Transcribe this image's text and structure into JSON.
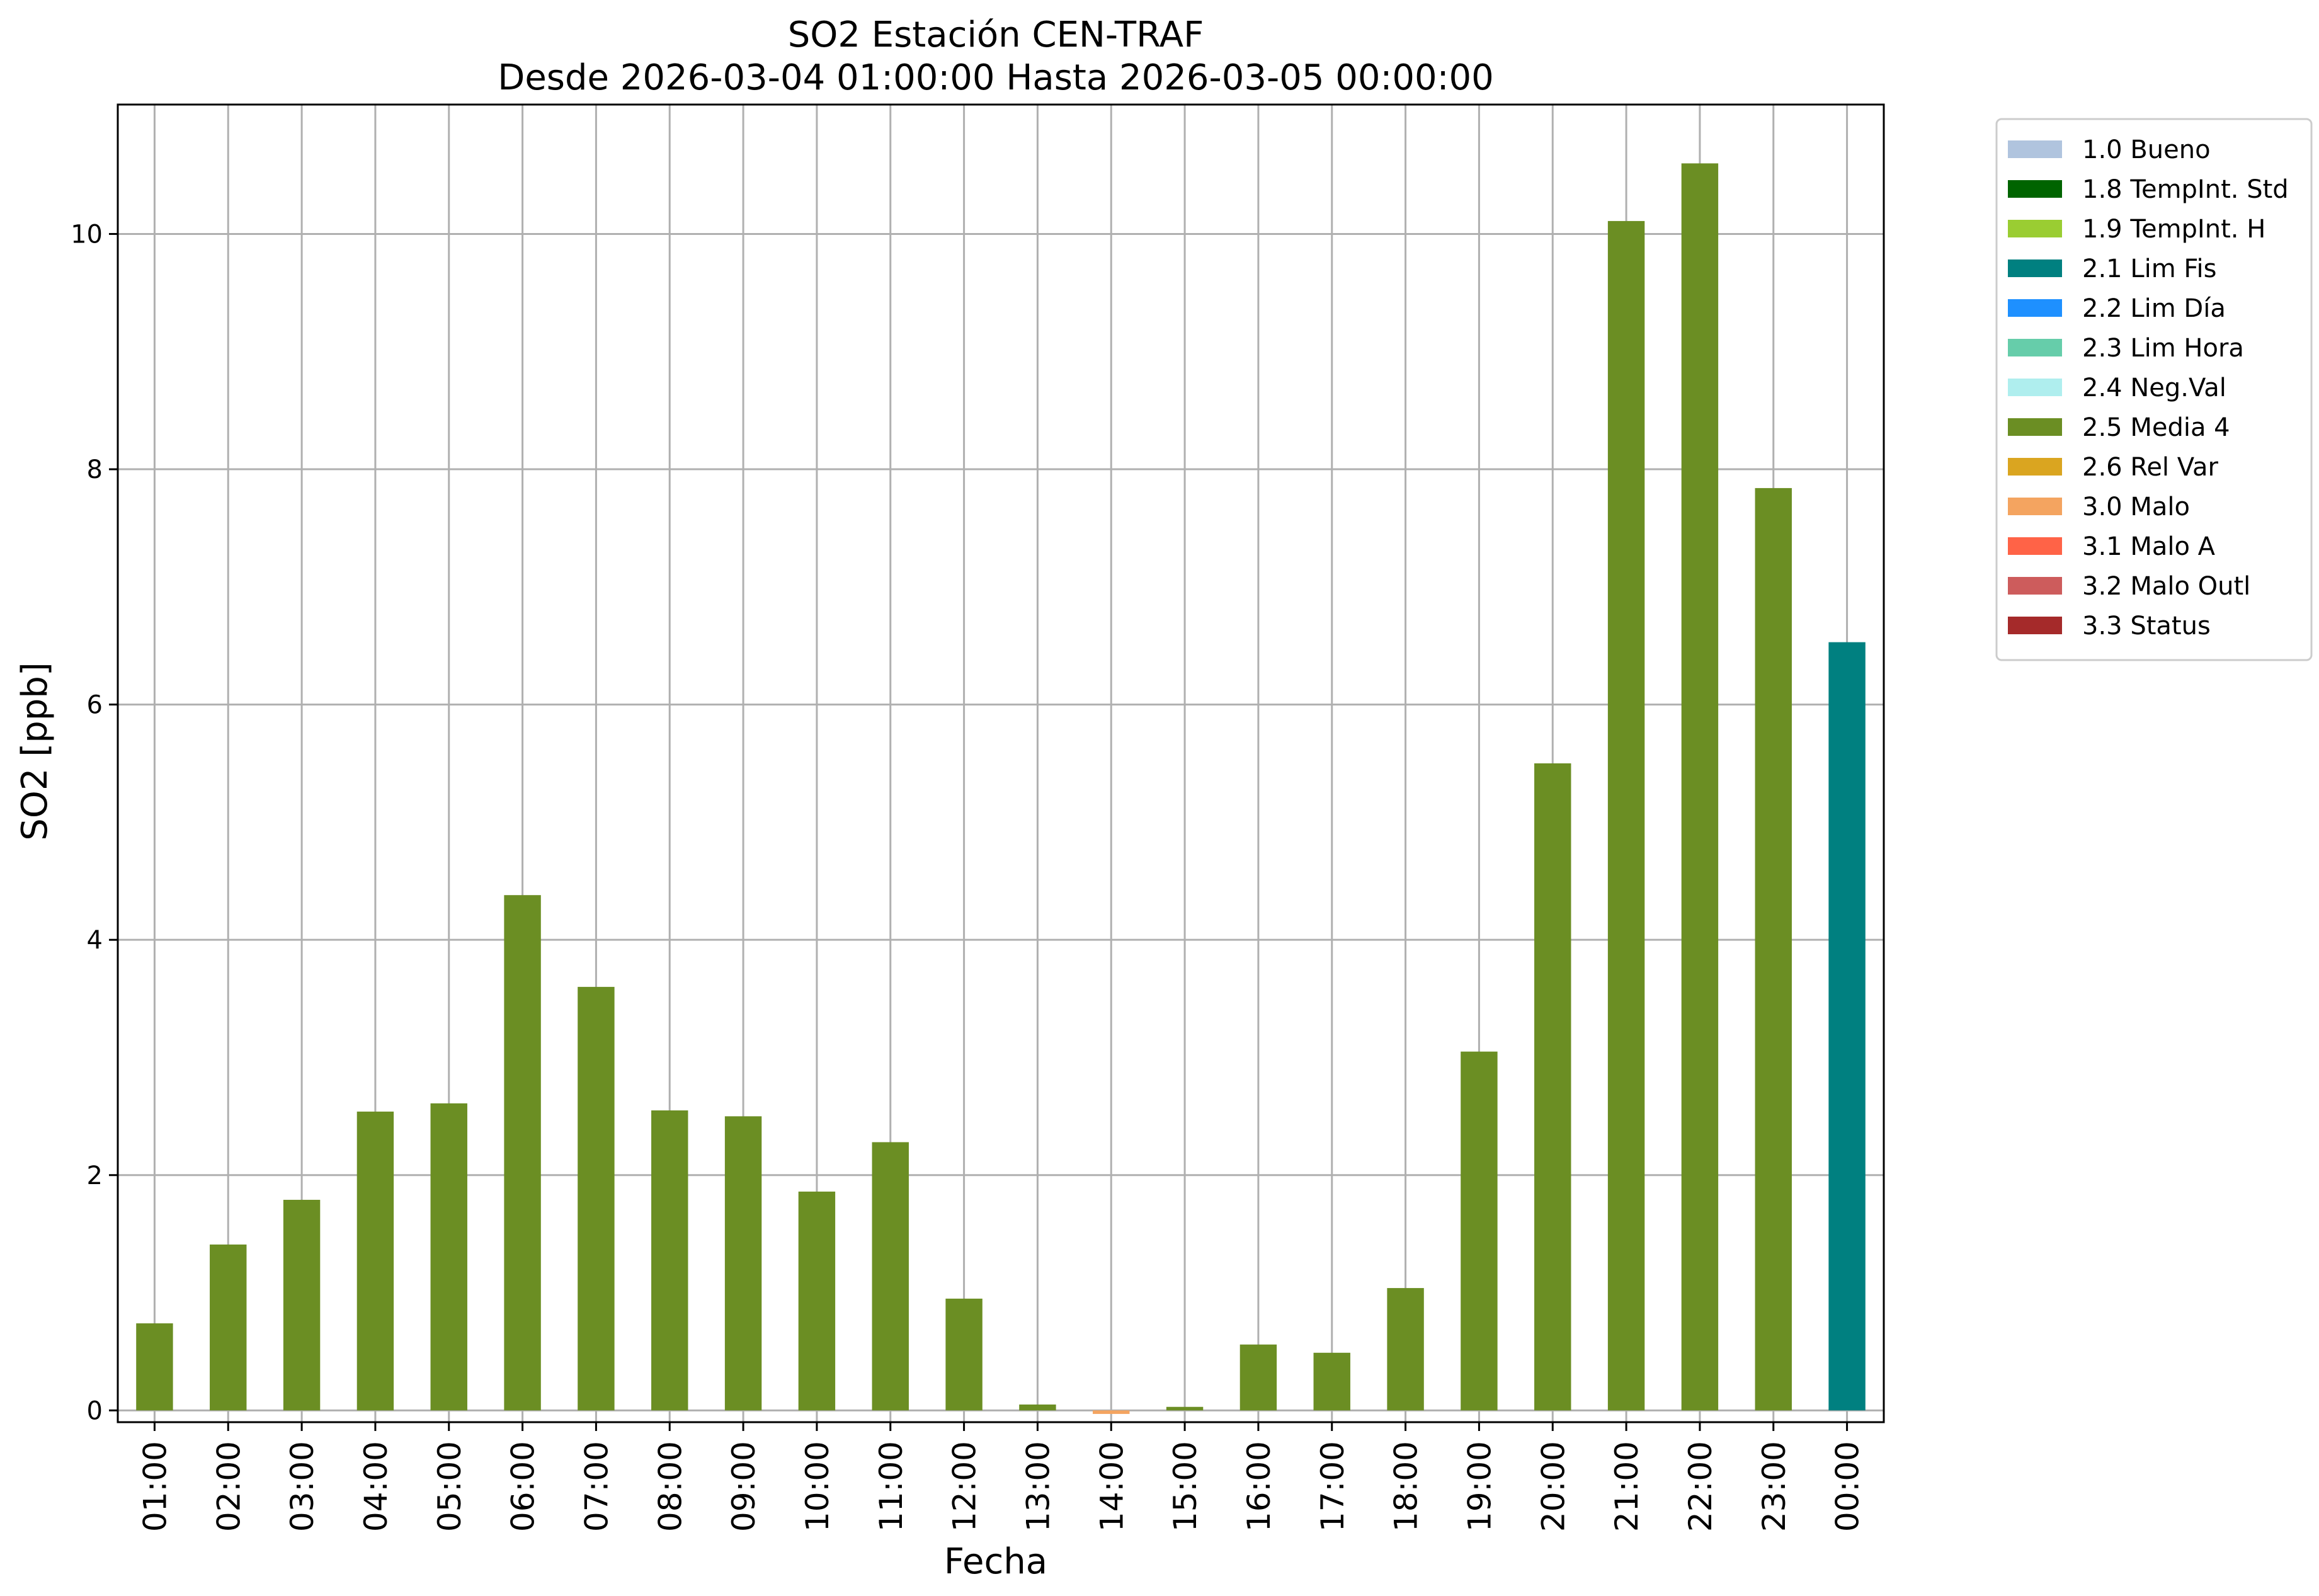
{
  "chart_data": {
    "type": "bar",
    "title": "SO2 Estación CEN-TRAF",
    "subtitle": "Desde 2026-03-04 01:00:00 Hasta 2026-03-05 00:00:00",
    "xlabel": "Fecha",
    "ylabel": "SO2 [ppb]",
    "ylim": [
      -0.1,
      11.1
    ],
    "yticks": [
      0,
      2,
      4,
      6,
      8,
      10
    ],
    "yticks_text": [
      "0",
      "2",
      "4",
      "6",
      "8",
      "10"
    ],
    "grid": true,
    "legend_position": "outside-top-right",
    "categories": [
      "01:00",
      "02:00",
      "03:00",
      "04:00",
      "05:00",
      "06:00",
      "07:00",
      "08:00",
      "09:00",
      "10:00",
      "11:00",
      "12:00",
      "13:00",
      "14:00",
      "15:00",
      "16:00",
      "17:00",
      "18:00",
      "19:00",
      "20:00",
      "21:00",
      "22:00",
      "23:00",
      "00:00"
    ],
    "values": [
      0.74,
      1.41,
      1.79,
      2.54,
      2.61,
      4.38,
      3.6,
      2.55,
      2.5,
      1.86,
      2.28,
      0.95,
      0.05,
      -0.03,
      0.03,
      0.56,
      0.49,
      1.04,
      3.05,
      5.5,
      10.11,
      10.6,
      7.84,
      6.53
    ],
    "bar_flags": [
      "2.5 Media 4",
      "2.5 Media 4",
      "2.5 Media 4",
      "2.5 Media 4",
      "2.5 Media 4",
      "2.5 Media 4",
      "2.5 Media 4",
      "2.5 Media 4",
      "2.5 Media 4",
      "2.5 Media 4",
      "2.5 Media 4",
      "2.5 Media 4",
      "2.5 Media 4",
      "3.0 Malo",
      "2.5 Media 4",
      "2.5 Media 4",
      "2.5 Media 4",
      "2.5 Media 4",
      "2.5 Media 4",
      "2.5 Media 4",
      "2.5 Media 4",
      "2.5 Media 4",
      "2.5 Media 4",
      "2.1 Lim Fis"
    ],
    "legend": [
      {
        "label": "1.0 Bueno",
        "color": "#b0c4de"
      },
      {
        "label": "1.8 TempInt. Std",
        "color": "#006400"
      },
      {
        "label": "1.9 TempInt. H",
        "color": "#9acd32"
      },
      {
        "label": "2.1 Lim Fis",
        "color": "#008080"
      },
      {
        "label": "2.2 Lim Día",
        "color": "#1e90ff"
      },
      {
        "label": "2.3 Lim Hora",
        "color": "#66cdaa"
      },
      {
        "label": "2.4 Neg.Val",
        "color": "#afeeee"
      },
      {
        "label": "2.5 Media 4",
        "color": "#6b8e23"
      },
      {
        "label": "2.6 Rel Var",
        "color": "#daa520"
      },
      {
        "label": "3.0 Malo",
        "color": "#f4a460"
      },
      {
        "label": "3.1 Malo A",
        "color": "#ff6347"
      },
      {
        "label": "3.2 Malo Outl",
        "color": "#cd5c5c"
      },
      {
        "label": "3.3 Status",
        "color": "#a52a2a"
      }
    ]
  }
}
